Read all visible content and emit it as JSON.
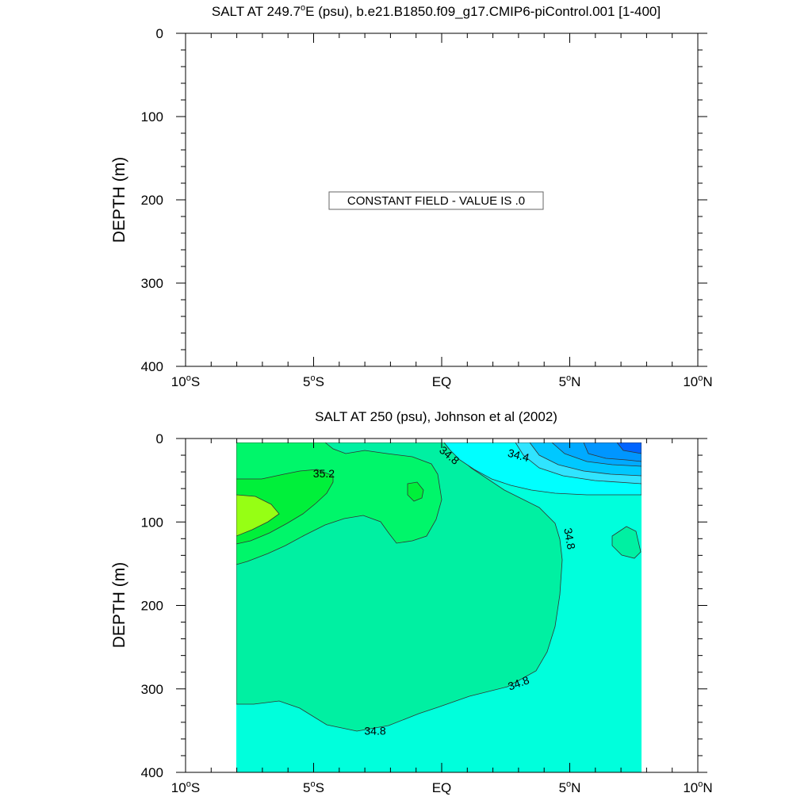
{
  "chart_data": [
    {
      "type": "contour",
      "title": "SALT AT 249.7°E (psu), b.e21.B1850.f09_g17.CMIP6-piControl.001 [1-400]",
      "title_main": "SALT AT 249.7",
      "title_deg": "o",
      "title_rest": "E (psu), b.e21.B1850.f09_g17.CMIP6-piControl.001 [1-400]",
      "ylabel": "DEPTH (m)",
      "ylim": [
        0,
        400
      ],
      "y_inverted": true,
      "xlim": [
        -10,
        10
      ],
      "xticks": [
        {
          "value": -10,
          "main": "10",
          "deg": "o",
          "hemi": "S"
        },
        {
          "value": -5,
          "main": "5",
          "deg": "o",
          "hemi": "S"
        },
        {
          "value": 0,
          "main": "EQ",
          "deg": "",
          "hemi": ""
        },
        {
          "value": 5,
          "main": "5",
          "deg": "o",
          "hemi": "N"
        },
        {
          "value": 10,
          "main": "10",
          "deg": "o",
          "hemi": "N"
        }
      ],
      "yticks": [
        "0",
        "100",
        "200",
        "300",
        "400"
      ],
      "message": "CONSTANT FIELD - VALUE IS .0",
      "constant_value": 0.0
    },
    {
      "type": "contour",
      "title": "SALT AT 250 (psu), Johnson et al (2002)",
      "ylabel": "DEPTH (m)",
      "ylim": [
        0,
        400
      ],
      "y_inverted": true,
      "xlim": [
        -10,
        10
      ],
      "data_x_extent": [
        -8,
        8.2
      ],
      "data_y_extent": [
        5,
        400
      ],
      "xticks": [
        {
          "value": -10,
          "main": "10",
          "deg": "o",
          "hemi": "S"
        },
        {
          "value": -5,
          "main": "5",
          "deg": "o",
          "hemi": "S"
        },
        {
          "value": 0,
          "main": "EQ",
          "deg": "",
          "hemi": ""
        },
        {
          "value": 5,
          "main": "5",
          "deg": "o",
          "hemi": "N"
        },
        {
          "value": 10,
          "main": "10",
          "deg": "o",
          "hemi": "N"
        }
      ],
      "yticks": [
        "0",
        "100",
        "200",
        "300",
        "400"
      ],
      "contour_labels": [
        {
          "text": "35.2",
          "x": -4.6,
          "y": 42,
          "angle": 0
        },
        {
          "text": "34.8",
          "x": 0.3,
          "y": 20,
          "angle": 40
        },
        {
          "text": "34.4",
          "x": 3.0,
          "y": 20,
          "angle": 15
        },
        {
          "text": "34.8",
          "x": 5.0,
          "y": 120,
          "angle": 80
        },
        {
          "text": "34.8",
          "x": 3.0,
          "y": 293,
          "angle": -20
        },
        {
          "text": "34.8",
          "x": -2.6,
          "y": 350,
          "angle": 0
        }
      ],
      "colors": {
        "base": "#00ffdc",
        "band_34_8_35_0": "#00f0a2",
        "band_35_0_35_2": "#00f66a",
        "band_35_2_35_4": "#00f03a",
        "band_35_4_35_6": "#96ff14",
        "fresh_1": "#00ffff",
        "fresh_2": "#30e4ff",
        "fresh_3": "#00c8ff",
        "fresh_4": "#00aaff",
        "fresh_5": "#0096ff",
        "fresh_6": "#0064ff"
      }
    }
  ]
}
